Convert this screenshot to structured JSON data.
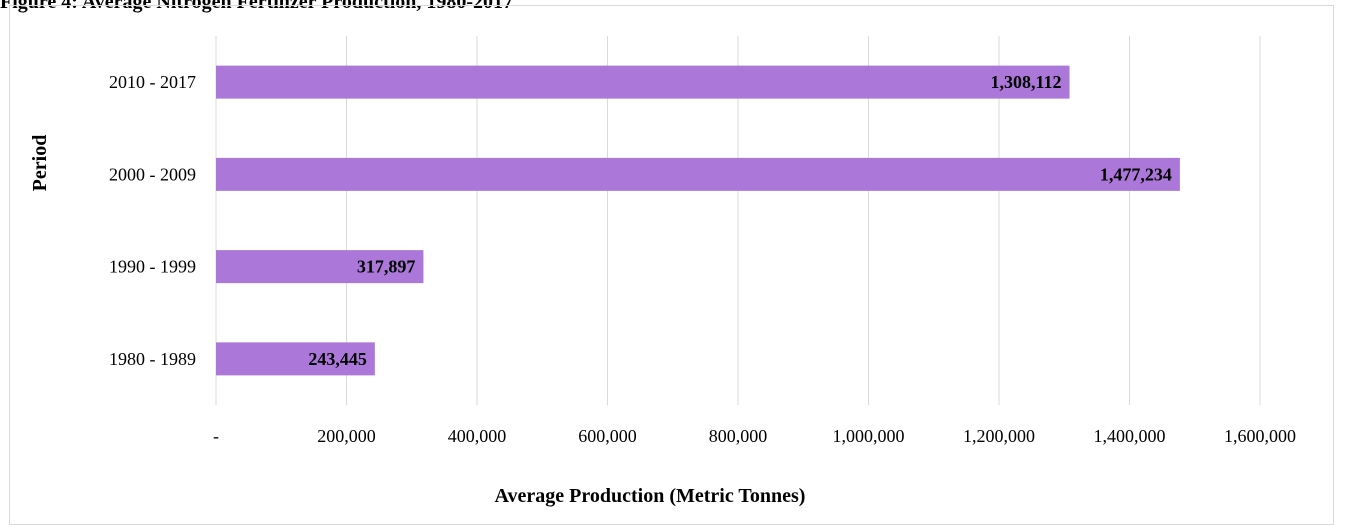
{
  "caption": "Figure 4: Average Nitrogen Fertilizer Production, 1980-2017",
  "chart_data": {
    "type": "bar",
    "orientation": "horizontal",
    "categories": [
      "1980 - 1989",
      "1990 - 1999",
      "2000 - 2009",
      "2010 - 2017"
    ],
    "values": [
      243445,
      317897,
      1477234,
      1308112
    ],
    "value_labels": [
      "243,445",
      "317,897",
      "1,477,234",
      "1,308,112"
    ],
    "xlabel": "Average Production (Metric Tonnes)",
    "ylabel": "Period",
    "xlim": [
      0,
      1600000
    ],
    "xticks": [
      0,
      200000,
      400000,
      600000,
      800000,
      1000000,
      1200000,
      1400000,
      1600000
    ],
    "xtick_labels": [
      "-",
      "200,000",
      "400,000",
      "600,000",
      "800,000",
      "1,000,000",
      "1,200,000",
      "1,400,000",
      "1,600,000"
    ],
    "grid": "vertical",
    "legend": "none",
    "bar_color": "#ab78d9"
  }
}
